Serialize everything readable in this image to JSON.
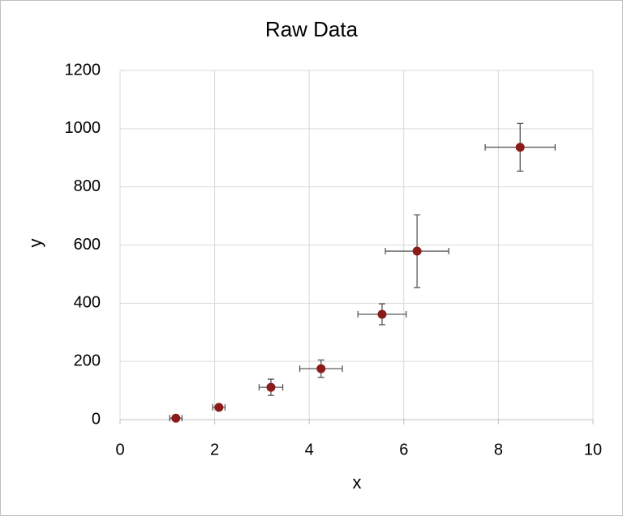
{
  "chart_data": {
    "type": "scatter",
    "title": "Raw Data",
    "x_label": "x",
    "y_label": "y",
    "series": [
      {
        "color": "#8b1a1a",
        "error_color": "#595959",
        "x": [
          1.18,
          2.09,
          3.19,
          4.25,
          5.54,
          6.28,
          8.46
        ],
        "values": [
          5,
          42,
          111,
          175,
          362,
          579,
          936
        ],
        "xerr": [
          0.13,
          0.13,
          0.25,
          0.45,
          0.51,
          0.67,
          0.74
        ],
        "yerr": [
          5,
          8,
          28,
          30,
          36,
          125,
          82
        ]
      }
    ],
    "xlim": [
      0,
      10
    ],
    "xticks": [
      0,
      2,
      4,
      6,
      8,
      10
    ],
    "ylim": [
      0,
      1200
    ],
    "yticks": [
      0,
      200,
      400,
      600,
      800,
      1000,
      1200
    ],
    "grid": true
  }
}
